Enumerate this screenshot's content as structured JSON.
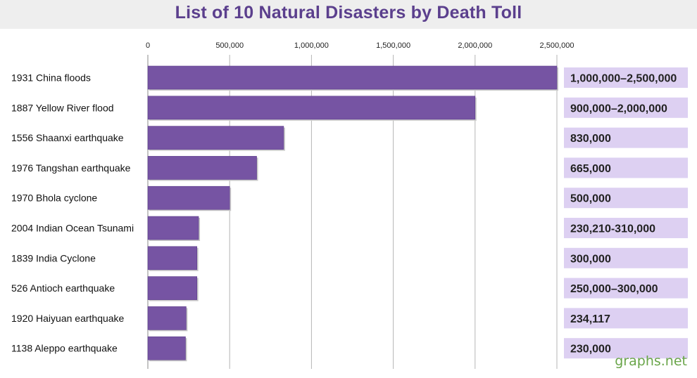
{
  "chart_data": {
    "type": "bar",
    "orientation": "horizontal",
    "title": "List of 10 Natural Disasters by Death Toll",
    "xlabel": "",
    "ylabel": "",
    "xlim": [
      0,
      2500000
    ],
    "ticks": [
      {
        "value": 0,
        "label": "0"
      },
      {
        "value": 500000,
        "label": "500,000"
      },
      {
        "value": 1000000,
        "label": "1,000,000"
      },
      {
        "value": 1500000,
        "label": "1,500,000"
      },
      {
        "value": 2000000,
        "label": "2,000,000"
      },
      {
        "value": 2500000,
        "label": "2,500,000"
      }
    ],
    "grid": true,
    "bar_color": "#7654a3",
    "value_box_color": "#ddd0f2",
    "categories": [
      "1931 China floods",
      "1887 Yellow River flood",
      "1556 Shaanxi earthquake",
      "1976 Tangshan  earthquake",
      "1970 Bhola cyclone",
      "2004 Indian Ocean Tsunami",
      "1839 India Cyclone",
      "526 Antioch earthquake",
      "1920 Haiyuan earthquake",
      "1138 Aleppo earthquake"
    ],
    "values": [
      2500000,
      2000000,
      830000,
      665000,
      500000,
      310000,
      300000,
      300000,
      234117,
      230000
    ],
    "value_labels": [
      "1,000,000–2,500,000",
      "900,000–2,000,000",
      "830,000",
      "665,000",
      "500,000",
      "230,210-310,000",
      "300,000",
      "250,000–300,000",
      "234,117",
      "230,000"
    ]
  },
  "watermark": "graphs.net"
}
